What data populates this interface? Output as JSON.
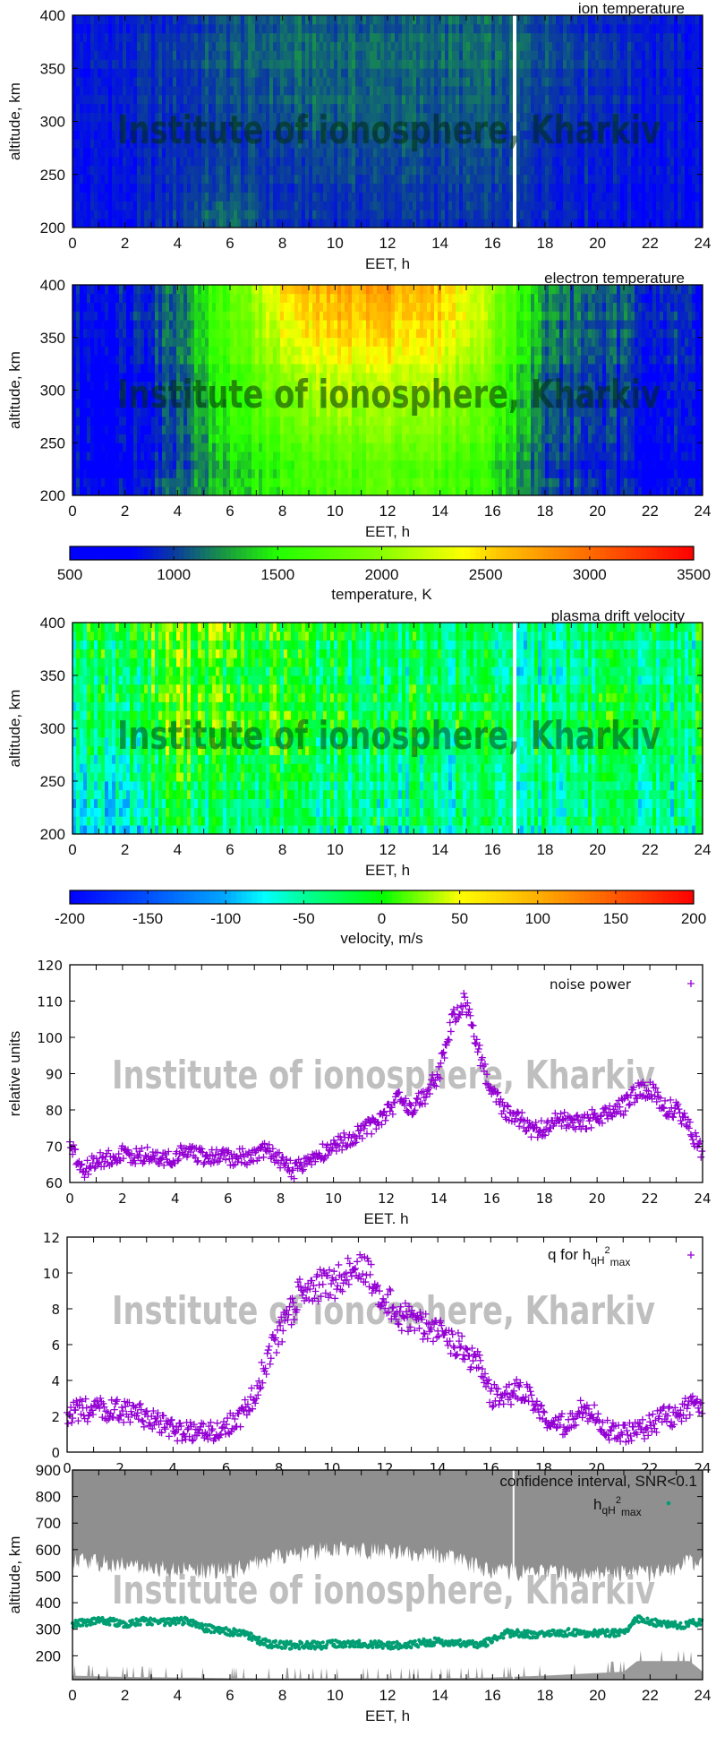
{
  "watermark": "Institute of ionosphere, Kharkiv",
  "colorbars": [
    {
      "label": "temperature, K",
      "range": [
        500,
        3500
      ],
      "ticks": [
        "500",
        "1000",
        "1500",
        "2000",
        "2500",
        "3000",
        "3500"
      ],
      "stops": [
        [
          500,
          "#0000ff"
        ],
        [
          800,
          "#0000ff"
        ],
        [
          1000,
          "#0a3aa0"
        ],
        [
          1250,
          "#1a9a40"
        ],
        [
          1500,
          "#22ff00"
        ],
        [
          2000,
          "#88ff00"
        ],
        [
          2400,
          "#ffff00"
        ],
        [
          2550,
          "#ffc800"
        ],
        [
          3000,
          "#ff6a00"
        ],
        [
          3500,
          "#ff0000"
        ]
      ]
    },
    {
      "label": "velocity, m/s",
      "range": [
        -200,
        200
      ],
      "ticks": [
        "-200",
        "-150",
        "-100",
        "-50",
        "0",
        "50",
        "100",
        "150",
        "200"
      ],
      "stops": [
        [
          -200,
          "#0000ff"
        ],
        [
          -150,
          "#0050ff"
        ],
        [
          -100,
          "#00a8ff"
        ],
        [
          -75,
          "#00ffff"
        ],
        [
          -50,
          "#00ff99"
        ],
        [
          0,
          "#00ff00"
        ],
        [
          50,
          "#ffff00"
        ],
        [
          100,
          "#ffb000"
        ],
        [
          200,
          "#ff0000"
        ]
      ]
    }
  ],
  "chart_data": [
    {
      "type": "heatmap",
      "title": "ion temperature",
      "xlabel": "EET, h",
      "ylabel": "altitude, km",
      "xlim": [
        0,
        24
      ],
      "ylim": [
        200,
        400
      ],
      "xticks": [
        "0",
        "2",
        "4",
        "6",
        "8",
        "10",
        "12",
        "14",
        "16",
        "18",
        "20",
        "22",
        "24"
      ],
      "yticks": [
        "200",
        "250",
        "300",
        "350",
        "400"
      ],
      "colorbar": 0,
      "gaps_h": [
        16.8
      ],
      "grid": {
        "time_h": [
          0,
          2,
          4,
          6,
          8,
          10,
          12,
          14,
          16,
          18,
          20,
          22,
          24
        ],
        "altitude_km": [
          200,
          250,
          300,
          350,
          400
        ],
        "values_K": [
          [
            850,
            850,
            1000,
            1150,
            950,
            950,
            950,
            950,
            950,
            950,
            900,
            850,
            850
          ],
          [
            850,
            850,
            950,
            1000,
            950,
            1000,
            1000,
            1000,
            1000,
            950,
            900,
            850,
            850
          ],
          [
            850,
            900,
            950,
            1000,
            1050,
            1100,
            1100,
            1050,
            1050,
            1000,
            950,
            900,
            850
          ],
          [
            850,
            900,
            1000,
            1050,
            1100,
            1100,
            1100,
            1100,
            1100,
            1050,
            1000,
            900,
            850
          ],
          [
            850,
            900,
            950,
            1050,
            1100,
            1100,
            1100,
            1100,
            1100,
            1050,
            950,
            900,
            850
          ]
        ]
      }
    },
    {
      "type": "heatmap",
      "title": "electron temperature",
      "xlabel": "EET, h",
      "ylabel": "altitude, km",
      "xlim": [
        0,
        24
      ],
      "ylim": [
        200,
        400
      ],
      "xticks": [
        "0",
        "2",
        "4",
        "6",
        "8",
        "10",
        "12",
        "14",
        "16",
        "18",
        "20",
        "22",
        "24"
      ],
      "yticks": [
        "200",
        "250",
        "300",
        "350",
        "400"
      ],
      "colorbar": 0,
      "gaps_h": [],
      "grid": {
        "time_h": [
          0,
          2,
          4,
          6,
          8,
          10,
          12,
          14,
          16,
          18,
          20,
          22,
          24
        ],
        "altitude_km": [
          200,
          250,
          300,
          350,
          400
        ],
        "values_K": [
          [
            800,
            800,
            1100,
            1300,
            1500,
            1650,
            1700,
            1650,
            1500,
            1000,
            900,
            800,
            800
          ],
          [
            800,
            800,
            1050,
            1450,
            1700,
            1850,
            1900,
            1850,
            1650,
            1050,
            950,
            850,
            800
          ],
          [
            800,
            800,
            1100,
            1600,
            1950,
            2150,
            2150,
            2100,
            1800,
            1100,
            1000,
            900,
            850
          ],
          [
            800,
            850,
            1150,
            1700,
            2250,
            2450,
            2500,
            2400,
            2000,
            1150,
            1050,
            950,
            850
          ],
          [
            850,
            900,
            1200,
            1750,
            2500,
            2700,
            2750,
            2600,
            2100,
            1200,
            1100,
            1000,
            900
          ]
        ]
      }
    },
    {
      "type": "heatmap",
      "title": "plasma drift velocity",
      "xlabel": "EET, h",
      "ylabel": "altitude, km",
      "xlim": [
        0,
        24
      ],
      "ylim": [
        200,
        400
      ],
      "xticks": [
        "0",
        "2",
        "4",
        "6",
        "8",
        "10",
        "12",
        "14",
        "16",
        "18",
        "20",
        "22",
        "24"
      ],
      "yticks": [
        "200",
        "250",
        "300",
        "350",
        "400"
      ],
      "colorbar": 1,
      "gaps_h": [
        16.8
      ],
      "grid": {
        "time_h": [
          0,
          2,
          4,
          6,
          8,
          10,
          12,
          14,
          16,
          18,
          20,
          22,
          24
        ],
        "altitude_km": [
          200,
          250,
          300,
          350,
          400
        ],
        "values_m_s": [
          [
            -80,
            -90,
            -20,
            -50,
            -40,
            -40,
            -50,
            -50,
            -50,
            -40,
            -50,
            -60,
            -50
          ],
          [
            -60,
            -60,
            0,
            -30,
            -20,
            -30,
            -40,
            -40,
            -40,
            -30,
            -40,
            -40,
            -40
          ],
          [
            -40,
            -40,
            10,
            -10,
            -10,
            -20,
            -30,
            -30,
            -30,
            -30,
            -30,
            -30,
            -30
          ],
          [
            -30,
            -30,
            20,
            -10,
            -10,
            -20,
            -30,
            -30,
            -40,
            -40,
            -40,
            -40,
            -30
          ],
          [
            -30,
            -20,
            20,
            0,
            -10,
            -20,
            -30,
            -40,
            -50,
            -50,
            -50,
            -40,
            -30
          ]
        ]
      }
    },
    {
      "type": "scatter",
      "title": "",
      "xlabel": "EET. h",
      "ylabel": "relative units",
      "xlim": [
        0,
        24
      ],
      "ylim": [
        60,
        120
      ],
      "xticks": [
        "0",
        "2",
        "4",
        "6",
        "8",
        "10",
        "12",
        "14",
        "16",
        "18",
        "20",
        "22",
        "24"
      ],
      "yticks": [
        "60",
        "70",
        "80",
        "90",
        "100",
        "110",
        "120"
      ],
      "legend": {
        "label": "noise power",
        "placement": "top-right"
      },
      "color": "#9400d3",
      "x": [
        0,
        0.5,
        1,
        1.5,
        2,
        2.5,
        3,
        3.5,
        4,
        4.5,
        5,
        5.5,
        6,
        6.5,
        7,
        7.5,
        8,
        8.5,
        9,
        9.5,
        10,
        10.5,
        11,
        11.5,
        12,
        12.5,
        13,
        13.5,
        14,
        14.5,
        15,
        15.5,
        16,
        16.5,
        17,
        17.5,
        18,
        18.5,
        19,
        19.5,
        20,
        20.5,
        21,
        21.5,
        22,
        22.5,
        23,
        23.5,
        24
      ],
      "y": [
        70,
        63,
        66,
        67,
        68,
        67,
        67.5,
        66,
        67,
        69,
        67,
        67,
        67,
        67,
        67,
        69,
        66,
        63,
        66,
        68,
        70,
        72,
        74,
        76,
        79,
        83,
        81,
        84,
        90,
        105,
        110,
        96,
        85,
        80,
        78,
        74,
        75,
        77,
        77,
        77,
        78,
        80,
        81,
        85,
        86,
        81,
        80,
        75,
        68
      ]
    },
    {
      "type": "scatter",
      "title": "",
      "xlabel": "EET. h",
      "ylabel": "",
      "xlim": [
        0,
        24
      ],
      "ylim": [
        0,
        12
      ],
      "xticks": [
        "0",
        "2",
        "4",
        "6",
        "8",
        "10",
        "12",
        "14",
        "16",
        "18",
        "20",
        "22",
        "24"
      ],
      "yticks": [
        "0",
        "2",
        "4",
        "6",
        "8",
        "10",
        "12"
      ],
      "legend": {
        "prefix": "q for h",
        "sub": "qH",
        "sup": "2",
        "sub2": "max",
        "placement": "top-right"
      },
      "color": "#9400d3",
      "x": [
        0,
        0.5,
        1,
        1.5,
        2,
        2.5,
        3,
        3.5,
        4,
        4.5,
        5,
        5.5,
        6,
        6.5,
        7,
        7.5,
        8,
        8.5,
        9,
        9.5,
        10,
        10.5,
        11,
        11.5,
        12,
        12.5,
        13,
        13.5,
        14,
        14.5,
        15,
        15.5,
        16,
        16.5,
        17,
        17.5,
        18,
        18.5,
        19,
        19.5,
        20,
        20.5,
        21,
        21.5,
        22,
        22.5,
        23,
        23.5,
        24
      ],
      "y": [
        2.2,
        2.3,
        2.4,
        2.4,
        2.3,
        2.2,
        2.0,
        1.6,
        1.2,
        1.1,
        1.1,
        1.2,
        1.4,
        1.9,
        3.0,
        5.0,
        6.5,
        8.0,
        9.5,
        9.3,
        9.3,
        9.8,
        10.5,
        9.8,
        8.5,
        7.8,
        7.3,
        7.0,
        6.8,
        6.2,
        5.6,
        5.0,
        3.2,
        3.0,
        3.4,
        3.0,
        2.0,
        1.5,
        1.6,
        2.5,
        2.0,
        1.2,
        1.0,
        1.1,
        1.5,
        1.9,
        2.0,
        2.6,
        2.2
      ]
    },
    {
      "type": "scatter",
      "title": "confidence interval, SNR<0.1",
      "xlabel": "EET, h",
      "ylabel": "altitude, km",
      "xlim": [
        0,
        24
      ],
      "ylim": [
        110,
        900
      ],
      "xticks": [
        "0",
        "2",
        "4",
        "6",
        "8",
        "10",
        "12",
        "14",
        "16",
        "18",
        "20",
        "22",
        "24"
      ],
      "yticks": [
        "200",
        "300",
        "400",
        "500",
        "600",
        "700",
        "800",
        "900"
      ],
      "legend": {
        "prefix": "h",
        "sub": "qH",
        "sup": "2",
        "sub2": "max",
        "placement": "top-right"
      },
      "color": "#009e73",
      "band_color": "#8f8f8f",
      "gaps_h": [
        16.8
      ],
      "x": [
        0,
        0.5,
        1,
        1.5,
        2,
        2.5,
        3,
        3.5,
        4,
        4.5,
        5,
        5.5,
        6,
        6.5,
        7,
        7.5,
        8,
        8.5,
        9,
        9.5,
        10,
        10.5,
        11,
        11.5,
        12,
        12.5,
        13,
        13.5,
        14,
        14.5,
        15,
        15.5,
        16,
        16.5,
        17,
        17.5,
        18,
        18.5,
        19,
        19.5,
        20,
        20.5,
        21,
        21.5,
        22,
        22.5,
        23,
        23.5,
        24
      ],
      "y": [
        320,
        325,
        330,
        330,
        320,
        330,
        330,
        325,
        330,
        330,
        305,
        300,
        290,
        285,
        260,
        245,
        240,
        240,
        240,
        240,
        245,
        245,
        245,
        245,
        240,
        240,
        245,
        250,
        255,
        245,
        245,
        240,
        260,
        285,
        285,
        280,
        280,
        285,
        290,
        285,
        285,
        285,
        285,
        340,
        330,
        320,
        315,
        320,
        330
      ],
      "confidence_upper_region": {
        "time_h": [
          0,
          2,
          4,
          6,
          8,
          10,
          12,
          14,
          16,
          18,
          20,
          22,
          24
        ],
        "lower_edge_km": [
          560,
          540,
          520,
          520,
          580,
          600,
          590,
          580,
          520,
          510,
          510,
          510,
          560
        ]
      },
      "confidence_lower_region": {
        "time_h": [
          0,
          2,
          4,
          6,
          8,
          10,
          12,
          14,
          16,
          18,
          20,
          21,
          21.5,
          23.5,
          24
        ],
        "upper_edge_km": [
          125,
          120,
          118,
          116,
          115,
          115,
          115,
          115,
          118,
          125,
          135,
          140,
          180,
          180,
          140
        ]
      }
    }
  ]
}
